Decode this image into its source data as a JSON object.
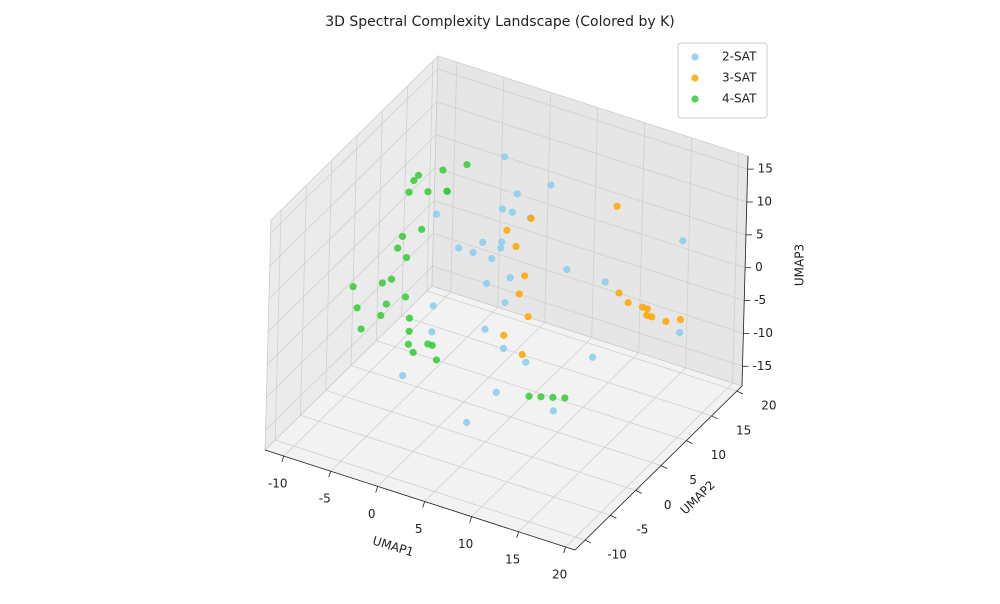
{
  "chart_data": {
    "type": "scatter3d",
    "title": "3D Spectral Complexity Landscape (Colored by K)",
    "xlabel": "UMAP1",
    "ylabel": "UMAP2",
    "zlabel": "UMAP3",
    "xlim": [
      -12,
      21
    ],
    "ylim": [
      -12,
      21
    ],
    "zlim": [
      -18,
      17
    ],
    "xticks": [
      -10,
      -5,
      0,
      5,
      10,
      15,
      20
    ],
    "yticks": [
      -10,
      -5,
      0,
      5,
      10,
      15,
      20
    ],
    "zticks": [
      -15,
      -10,
      -5,
      0,
      5,
      10,
      15
    ],
    "grid": true,
    "legend": "upper right",
    "series": [
      {
        "name": "2-SAT",
        "color": "#87ceeb",
        "x": [
          2,
          2,
          3,
          2,
          3,
          1,
          2,
          0,
          1,
          3,
          0,
          -2,
          -1,
          4,
          6,
          10,
          12,
          18,
          10,
          6,
          -6,
          -2,
          4,
          14,
          8,
          20,
          -4,
          -6,
          0,
          6
        ],
        "y": [
          8,
          8,
          8,
          9,
          7,
          8,
          10,
          9,
          7,
          9,
          8,
          7,
          8,
          4,
          6,
          6,
          10,
          14,
          4,
          0,
          4,
          2,
          -2,
          4,
          2,
          10,
          6,
          10,
          12,
          10
        ],
        "z": [
          10,
          5,
          0,
          -5,
          -10,
          2,
          8,
          -3,
          -8,
          12,
          4,
          3,
          2,
          8,
          12,
          6,
          2,
          8,
          -14,
          -10,
          -16,
          -6,
          -14,
          -4,
          -6,
          -2,
          -6,
          4,
          14,
          14
        ]
      },
      {
        "name": "3-SAT",
        "color": "#ffa500",
        "x": [
          16,
          15,
          17,
          18,
          14,
          16,
          17,
          19,
          12,
          4,
          3,
          4,
          5,
          3,
          4,
          2,
          5
        ],
        "y": [
          10,
          9,
          10,
          11,
          9,
          11,
          9,
          12,
          12,
          8,
          9,
          10,
          8,
          7,
          9,
          9,
          7
        ],
        "z": [
          0,
          1,
          -1,
          -2,
          2,
          -1,
          0,
          -2,
          12,
          -2,
          4,
          8,
          -5,
          -8,
          0,
          6,
          -10
        ]
      },
      {
        "name": "4-SAT",
        "color": "#32cd32",
        "x": [
          -8,
          -9,
          -7,
          -6,
          -8,
          -10,
          -5,
          -9,
          -8,
          -10,
          -7,
          -9,
          -8,
          -10,
          -11,
          -7,
          -11,
          -10,
          -9,
          -12,
          -6,
          -5,
          -4,
          -6,
          -3,
          -7,
          10,
          11,
          12,
          13,
          -7
        ],
        "y": [
          12,
          11,
          13,
          12,
          10,
          12,
          14,
          9,
          8,
          10,
          9,
          7,
          8,
          8,
          9,
          7,
          4,
          3,
          5,
          5,
          6,
          7,
          6,
          5,
          5,
          7,
          -1,
          -0.5,
          0,
          0.5,
          14
        ],
        "z": [
          5,
          7,
          8,
          6,
          9,
          4,
          9,
          0,
          -2,
          -3,
          2,
          -5,
          -8,
          -10,
          -8,
          -10,
          -8,
          -10,
          -9,
          -6,
          -14,
          -13,
          -12,
          -12,
          -13,
          -12,
          -8,
          -8,
          -8,
          -8,
          4
        ]
      }
    ]
  }
}
